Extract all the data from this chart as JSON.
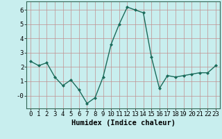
{
  "x": [
    0,
    1,
    2,
    3,
    4,
    5,
    6,
    7,
    8,
    9,
    10,
    11,
    12,
    13,
    14,
    15,
    16,
    17,
    18,
    19,
    20,
    21,
    22,
    23
  ],
  "y": [
    2.4,
    2.1,
    2.3,
    1.3,
    0.7,
    1.1,
    0.4,
    -0.55,
    -0.15,
    1.3,
    3.6,
    5.0,
    6.2,
    6.0,
    5.8,
    2.7,
    0.5,
    1.4,
    1.3,
    1.4,
    1.5,
    1.6,
    1.6,
    2.1
  ],
  "line_color": "#1a6b5a",
  "marker": "D",
  "marker_size": 2.0,
  "bg_color": "#c8eeee",
  "grid_color": "#c09090",
  "xlabel": "Humidex (Indice chaleur)",
  "xlabel_fontsize": 7.5,
  "ylim": [
    -0.9,
    6.6
  ],
  "xlim": [
    -0.5,
    23.5
  ],
  "yticks": [
    0,
    1,
    2,
    3,
    4,
    5,
    6
  ],
  "ytick_labels": [
    "-0",
    "1",
    "2",
    "3",
    "4",
    "5",
    "6"
  ],
  "xticks": [
    0,
    1,
    2,
    3,
    4,
    5,
    6,
    7,
    8,
    9,
    10,
    11,
    12,
    13,
    14,
    15,
    16,
    17,
    18,
    19,
    20,
    21,
    22,
    23
  ],
  "tick_fontsize": 6.5
}
